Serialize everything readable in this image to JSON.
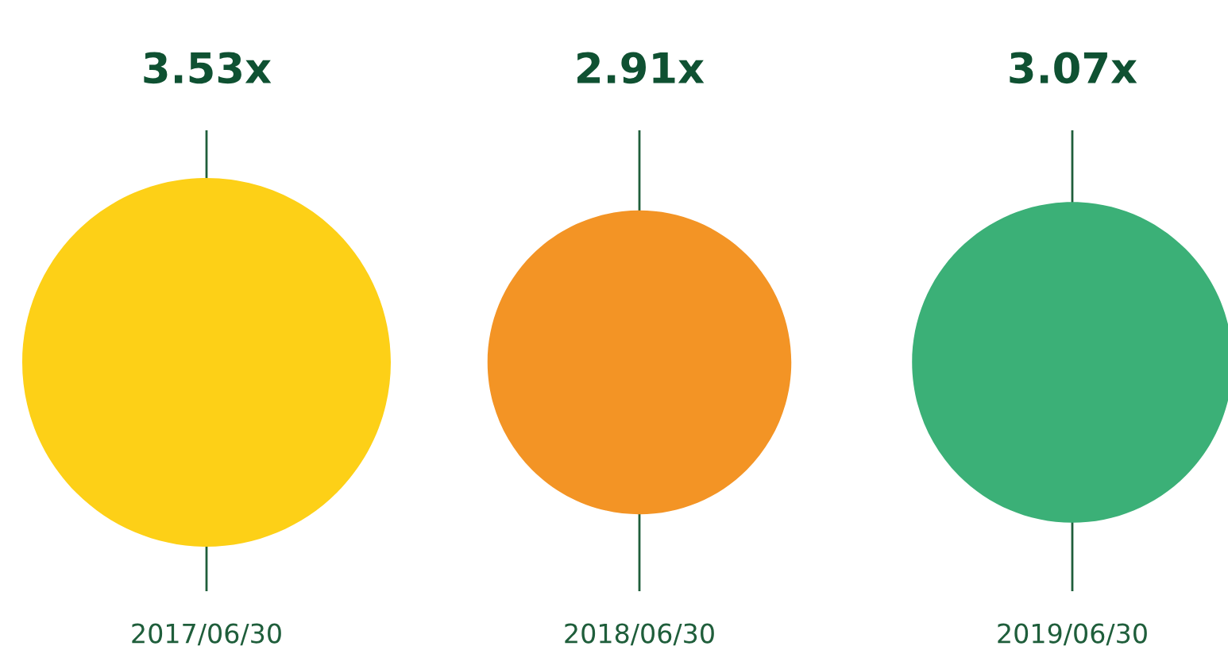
{
  "chart_data": {
    "type": "other",
    "categories": [
      "2017/06/30",
      "2018/06/30",
      "2019/06/30"
    ],
    "values": [
      3.53,
      2.91,
      3.07
    ],
    "value_labels": [
      "3.53x",
      "2.91x",
      "3.07x"
    ],
    "colors": [
      "#fdd017",
      "#f39425",
      "#3bb077"
    ]
  }
}
